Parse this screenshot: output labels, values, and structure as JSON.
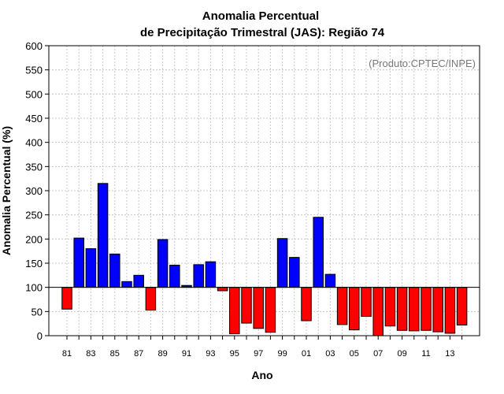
{
  "chart_data": {
    "type": "bar",
    "title_line1": "Anomalia Percentual",
    "title_line2": "de Precipitação Trimestral (JAS): Região 74",
    "xlabel": "Ano",
    "ylabel": "Anomalia Percentual (%)",
    "watermark": "(Produto:CPTEC/INPE)",
    "ylim": [
      0,
      600
    ],
    "yticks": [
      0,
      50,
      100,
      150,
      200,
      250,
      300,
      350,
      400,
      450,
      500,
      550,
      600
    ],
    "baseline": 100,
    "grid": true,
    "colors": {
      "above": "#0000ff",
      "below": "#ff0000",
      "grid": "#c8c8c8"
    },
    "categories": [
      "1981",
      "1982",
      "1983",
      "1984",
      "1985",
      "1986",
      "1987",
      "1988",
      "1989",
      "1990",
      "1991",
      "1992",
      "1993",
      "1994",
      "1995",
      "1996",
      "1997",
      "1998",
      "1999",
      "2000",
      "2001",
      "2002",
      "2003",
      "2004",
      "2005",
      "2006",
      "2007",
      "2008",
      "2009",
      "2010",
      "2011",
      "2012",
      "2013",
      "2014"
    ],
    "tick_labels": [
      "81",
      "",
      "83",
      "",
      "85",
      "",
      "87",
      "",
      "89",
      "",
      "91",
      "",
      "93",
      "",
      "95",
      "",
      "97",
      "",
      "99",
      "",
      "01",
      "",
      "03",
      "",
      "05",
      "",
      "07",
      "",
      "09",
      "",
      "11",
      "",
      "13",
      ""
    ],
    "values": [
      55,
      202,
      180,
      315,
      169,
      112,
      125,
      53,
      199,
      146,
      104,
      147,
      153,
      93,
      4,
      26,
      15,
      7,
      201,
      162,
      31,
      245,
      127,
      23,
      12,
      40,
      0,
      20,
      11,
      10,
      11,
      8,
      5,
      22
    ]
  }
}
